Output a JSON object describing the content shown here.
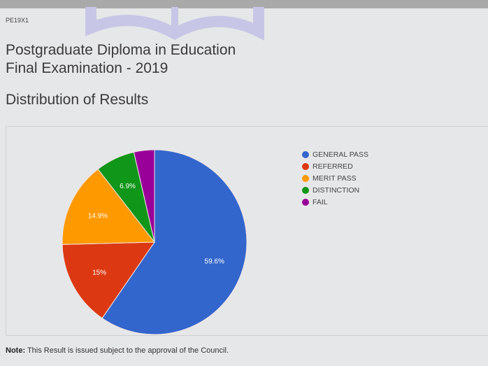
{
  "header": {
    "code": "PE19X1",
    "title_line1": "Postgraduate Diploma in Education",
    "title_line2": "Final Examination - 2019",
    "section_title": "Distribution of Results"
  },
  "footer": {
    "note_label": "Note:",
    "note_text": " This Result is issued subject to the approval of the Council."
  },
  "chart_data": {
    "type": "pie",
    "title": "Distribution of Results",
    "legend_position": "right",
    "slices": [
      {
        "label": "GENERAL PASS",
        "value": 59.6,
        "display": "59.6%",
        "color": "#3366cc"
      },
      {
        "label": "REFERRED",
        "value": 15.0,
        "display": "15%",
        "color": "#dc3912"
      },
      {
        "label": "MERIT PASS",
        "value": 14.9,
        "display": "14.9%",
        "color": "#ff9900"
      },
      {
        "label": "DISTINCTION",
        "value": 6.9,
        "display": "6.9%",
        "color": "#109618"
      },
      {
        "label": "FAIL",
        "value": 3.6,
        "display": "",
        "color": "#990099"
      }
    ]
  }
}
